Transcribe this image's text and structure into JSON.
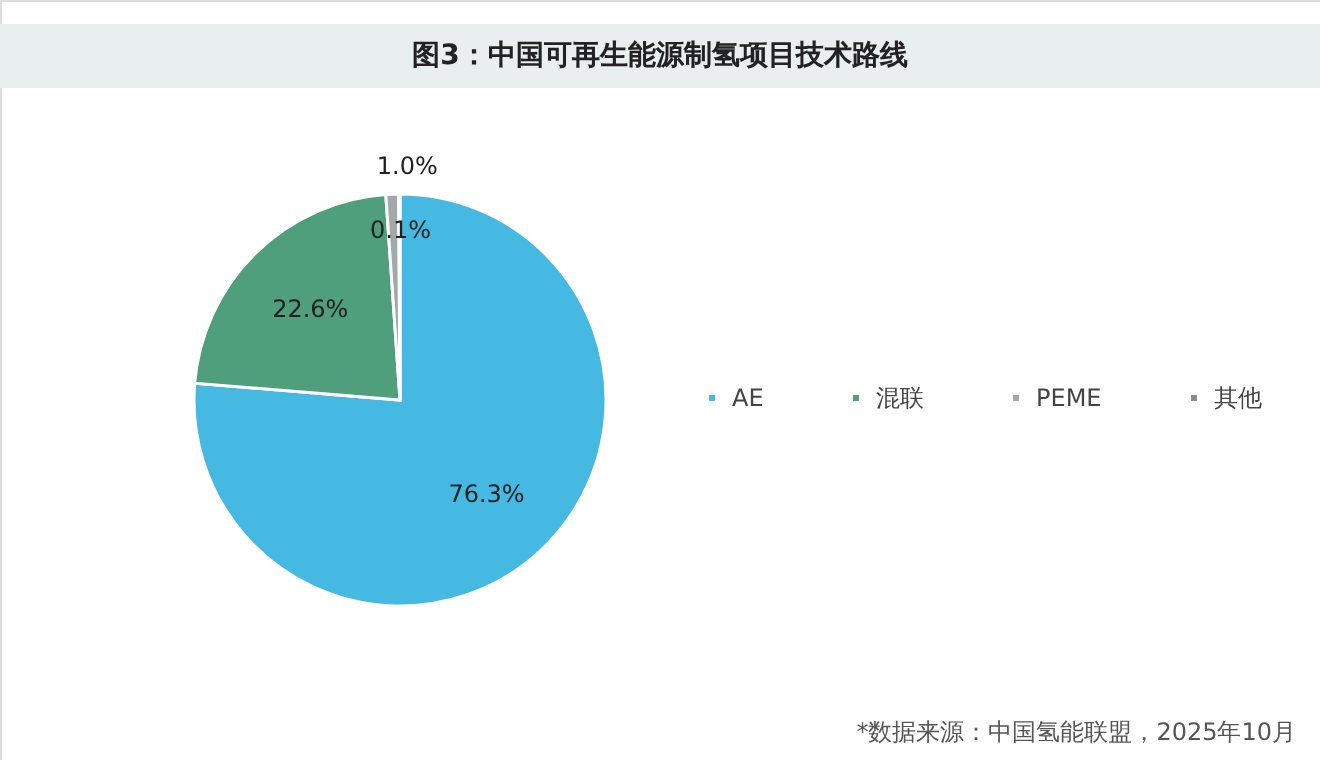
{
  "chart_data": {
    "type": "pie",
    "title": "图3：中国可再生能源制氢项目技术路线",
    "categories": [
      "AE",
      "混联",
      "PEME",
      "其他"
    ],
    "values": [
      76.3,
      22.6,
      1.0,
      0.1
    ],
    "colors": [
      "#45b9e2",
      "#4f9e7c",
      "#a3a8aa",
      "#7f8f96"
    ],
    "value_labels": [
      "76.3%",
      "22.6%",
      "1.0%",
      "0.1%"
    ],
    "legend": "right",
    "annotations": [
      "*数据来源：中国氢能联盟，2025年10月"
    ]
  }
}
